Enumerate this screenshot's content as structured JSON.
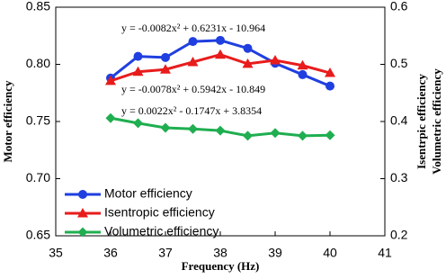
{
  "chart_data": {
    "type": "line",
    "x_label": "Frequency  (Hz)",
    "y_label": "Motor efficiency",
    "y2_labels": [
      "Isentrpic efficiency",
      "Volumetric efficiency"
    ],
    "annotations": [
      "y = -0.0082x² + 0.6231x - 10.964",
      "y = -0.0078x² + 0.5942x - 10.849",
      "y = 0.0022x² - 0.1747x + 3.8354"
    ],
    "x": [
      36,
      36.5,
      37,
      37.5,
      38,
      38.5,
      39,
      39.5,
      40
    ],
    "xlim": [
      35,
      41
    ],
    "xticks": [
      35,
      36,
      37,
      38,
      39,
      40,
      41
    ],
    "ylim": [
      0.65,
      0.85
    ],
    "yticks": [
      0.65,
      {
        "value": 0.7,
        "label": "0.70"
      },
      0.75,
      {
        "value": 0.8,
        "label": "0.80"
      },
      0.85
    ],
    "y2lim": [
      0.2,
      0.6
    ],
    "y2ticks": [
      0.2,
      0.3,
      0.4,
      0.5,
      0.6
    ],
    "series": [
      {
        "name": "Motor efficiency",
        "color": "#1f3fe0",
        "marker": "circle",
        "values": [
          0.788,
          0.807,
          0.806,
          0.82,
          0.821,
          0.814,
          0.801,
          0.791,
          0.781
        ]
      },
      {
        "name": "Isentropic efficiency",
        "color": "#e81c1c",
        "marker": "triangle",
        "axis": "y2",
        "values": [
          0.471,
          0.487,
          0.491,
          0.504,
          0.517,
          0.501,
          0.507,
          0.498,
          0.485
        ]
      },
      {
        "name": "Volumetric efficiency",
        "color": "#1fae50",
        "marker": "diamond",
        "axis": "y2",
        "values": [
          0.406,
          0.397,
          0.389,
          0.387,
          0.384,
          0.375,
          0.38,
          0.375,
          0.376
        ]
      }
    ]
  }
}
